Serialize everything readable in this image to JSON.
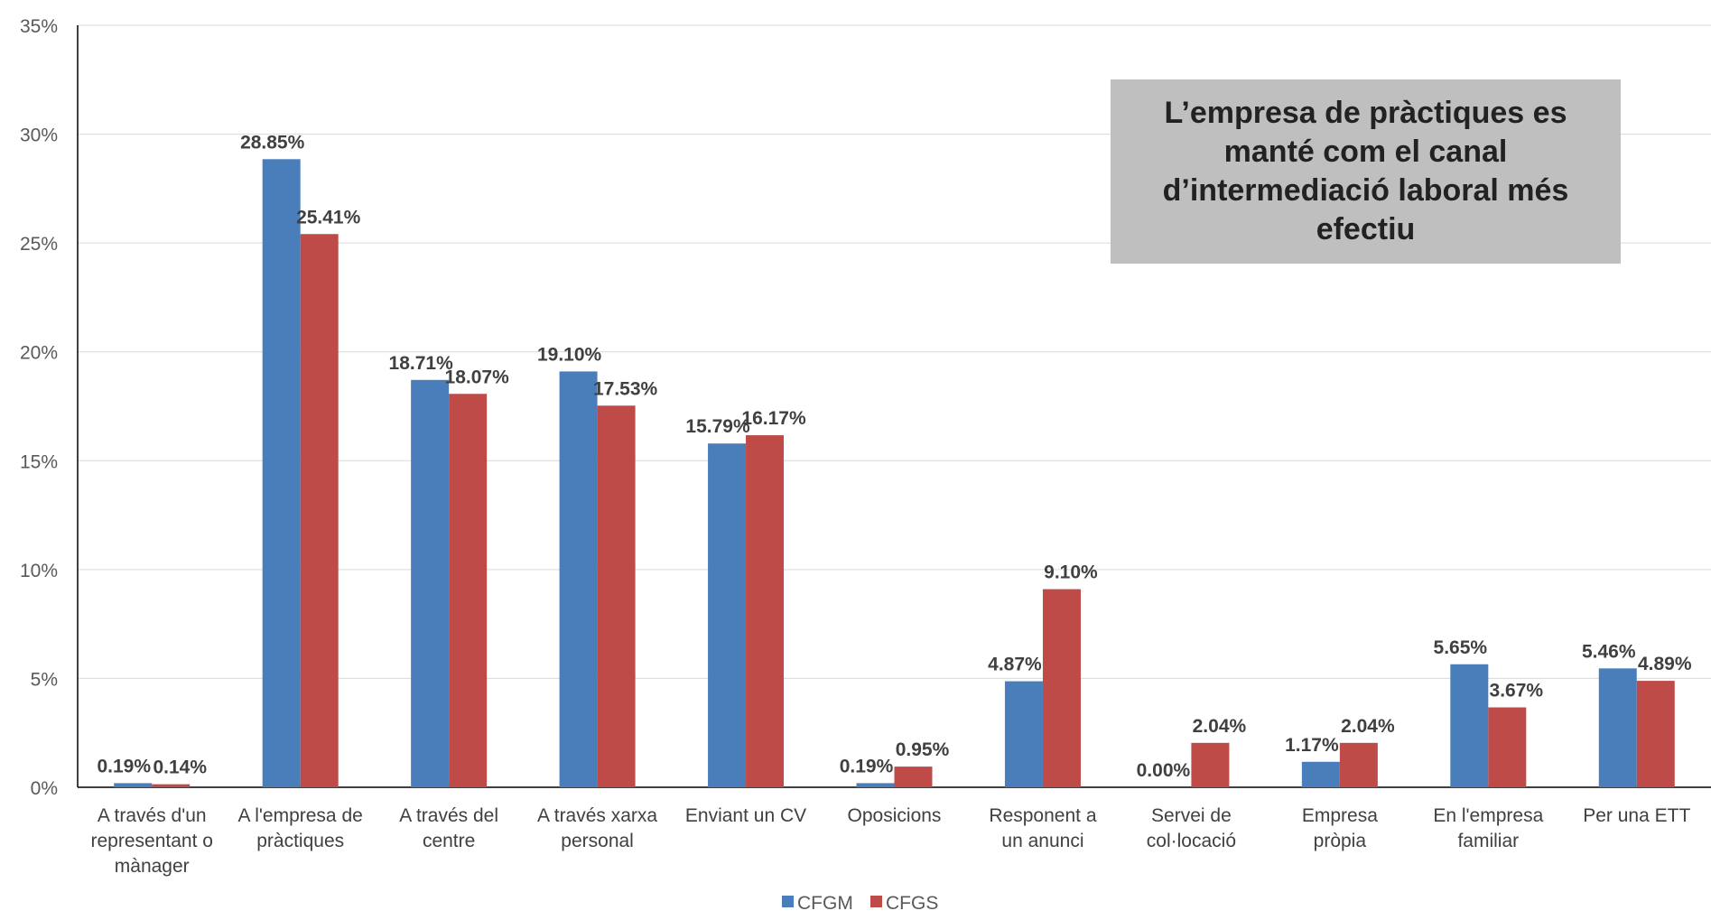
{
  "chart_data": {
    "type": "bar",
    "categories": [
      [
        "A través d'un",
        "representant o",
        "mànager"
      ],
      [
        "A l'empresa de",
        "pràctiques"
      ],
      [
        "A través del",
        "centre"
      ],
      [
        "A través xarxa",
        "personal"
      ],
      [
        "Enviant un CV"
      ],
      [
        "Oposicions"
      ],
      [
        "Responent a",
        "un anunci"
      ],
      [
        "Servei de",
        "col·locació"
      ],
      [
        "Empresa",
        "pròpia"
      ],
      [
        "En l'empresa",
        "familiar"
      ],
      [
        "Per una ETT"
      ]
    ],
    "series": [
      {
        "name": "CFGM",
        "color": "#4a7ebb",
        "values": [
          0.19,
          28.85,
          18.71,
          19.1,
          15.79,
          0.19,
          4.87,
          0.0,
          1.17,
          5.65,
          5.46
        ],
        "labels": [
          "0.19%",
          "28.85%",
          "18.71%",
          "19.10%",
          "15.79%",
          "0.19%",
          "4.87%",
          "0.00%",
          "1.17%",
          "5.65%",
          "5.46%"
        ]
      },
      {
        "name": "CFGS",
        "color": "#be4b48",
        "values": [
          0.14,
          25.41,
          18.07,
          17.53,
          16.17,
          0.95,
          9.1,
          2.04,
          2.04,
          3.67,
          4.89
        ],
        "labels": [
          "0.14%",
          "25.41%",
          "18.07%",
          "17.53%",
          "16.17%",
          "0.95%",
          "9.10%",
          "2.04%",
          "2.04%",
          "3.67%",
          "4.89%"
        ]
      }
    ],
    "ylim": [
      0,
      35
    ],
    "yticks": [
      0,
      5,
      10,
      15,
      20,
      25,
      30,
      35
    ],
    "ytick_labels": [
      "0%",
      "5%",
      "10%",
      "15%",
      "20%",
      "25%",
      "30%",
      "35%"
    ],
    "grid": true,
    "legend": "bottom-center",
    "annotation": "L’empresa de pràctiques es manté com el canal d’intermediació laboral més efectiu"
  }
}
